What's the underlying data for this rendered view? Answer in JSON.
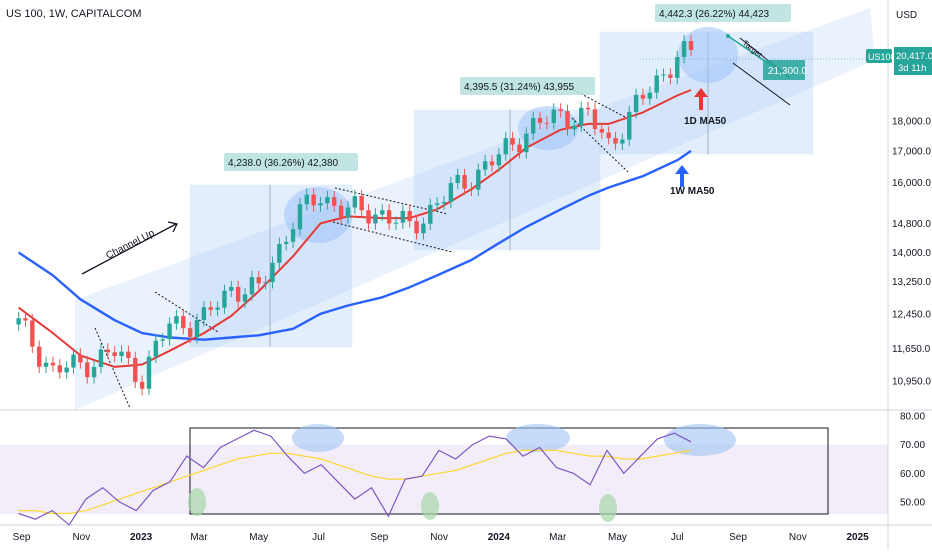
{
  "header": {
    "symbol_line": "US 100, 1W, CAPITALCOM",
    "currency": "USD"
  },
  "colors": {
    "bull": "#26a69a",
    "bear": "#ef5350",
    "ma_1d": "#e53935",
    "ma_1w": "#2962ff",
    "rsi": "#7e57c2",
    "rsi_ma": "#fdd835",
    "channel": "#9ec3f5",
    "target_box": "#26a69a"
  },
  "price_badges": {
    "symbol_tag": "US100",
    "last_price": "20,417.0",
    "countdown": "3d 11h"
  },
  "chart_data": [
    {
      "type": "line",
      "panel": "price",
      "scale": "log",
      "x_ticks": [
        "Sep",
        "Nov",
        "2023",
        "Mar",
        "May",
        "Jul",
        "Sep",
        "Nov",
        "2024",
        "Mar",
        "May",
        "Jul",
        "Sep",
        "Nov",
        "2025"
      ],
      "y_ticks": [
        "18,000.0",
        "17,000.0",
        "16,000.0",
        "14,800.0",
        "14,000.0",
        "13,250.0",
        "12,450.0",
        "11,650.0",
        "10,950.0"
      ],
      "y_tick_values": [
        18000,
        17000,
        16000,
        14800,
        14000,
        13250,
        12450,
        11650,
        10950
      ],
      "ylim": [
        10300,
        22400
      ],
      "x": [
        "2022-08-29",
        "2022-10-03",
        "2022-10-31",
        "2022-12-05",
        "2023-01-02",
        "2023-01-30",
        "2023-03-06",
        "2023-04-03",
        "2023-05-01",
        "2023-06-05",
        "2023-07-03",
        "2023-07-31",
        "2023-09-04",
        "2023-10-02",
        "2023-10-30",
        "2023-12-04",
        "2024-01-01",
        "2024-01-29",
        "2024-03-04",
        "2024-04-01",
        "2024-04-22",
        "2024-05-27",
        "2024-07-01",
        "2024-07-15"
      ],
      "series": [
        {
          "name": "Price",
          "values": [
            12200,
            11150,
            11300,
            11550,
            11050,
            12200,
            12300,
            13100,
            13000,
            14900,
            15600,
            15150,
            15100,
            14650,
            15400,
            16200,
            16800,
            17700,
            18200,
            18150,
            17200,
            18800,
            20400,
            20417
          ]
        },
        {
          "name": "1D MA50",
          "values": [
            12600,
            12000,
            11500,
            11250,
            11300,
            11600,
            12000,
            12400,
            13000,
            13900,
            14800,
            15000,
            14950,
            14950,
            15200,
            15800,
            16400,
            17100,
            17700,
            17900,
            17900,
            18300,
            18900,
            19100
          ]
        },
        {
          "name": "1W MA50",
          "values": [
            14000,
            13400,
            12800,
            12300,
            12000,
            11900,
            11850,
            11900,
            11950,
            12100,
            12450,
            12650,
            12850,
            13100,
            13400,
            13800,
            14250,
            14700,
            15200,
            15600,
            15850,
            16200,
            16700,
            17000
          ]
        }
      ],
      "annotations": [
        "4,238.0 (36.26%) 42,380",
        "4,395.5 (31.24%) 43,955",
        "4,442.3 (26.22%) 44,423",
        "Channel Up",
        "Target",
        "21,300.0",
        "1D MA50",
        "1W MA50"
      ]
    },
    {
      "type": "line",
      "panel": "rsi",
      "y_ticks": [
        "80.00",
        "70.00",
        "60.00",
        "50.00"
      ],
      "y_tick_values": [
        80,
        70,
        60,
        50
      ],
      "ylim": [
        43,
        82
      ],
      "x_range": [
        "2022-08-29",
        "2024-07-15"
      ],
      "series": [
        {
          "name": "RSI",
          "values": [
            46,
            44,
            47,
            42,
            51,
            55,
            50,
            47,
            54,
            57,
            66,
            62,
            69,
            72,
            75,
            73,
            66,
            60,
            63,
            57,
            51,
            55,
            45,
            58,
            59,
            68,
            65,
            70,
            73,
            72,
            66,
            69,
            62,
            60,
            56,
            68,
            60,
            66,
            72,
            74,
            71
          ]
        },
        {
          "name": "RSI MA",
          "values": [
            47,
            47,
            46,
            46,
            47,
            49,
            51,
            53,
            55,
            57,
            59,
            61,
            63,
            65,
            66,
            67,
            67,
            66,
            65,
            63,
            61,
            59,
            58,
            58,
            59,
            60,
            61,
            63,
            65,
            67,
            68,
            68,
            68,
            67,
            66,
            66,
            65,
            65,
            66,
            67,
            68
          ]
        }
      ]
    }
  ]
}
